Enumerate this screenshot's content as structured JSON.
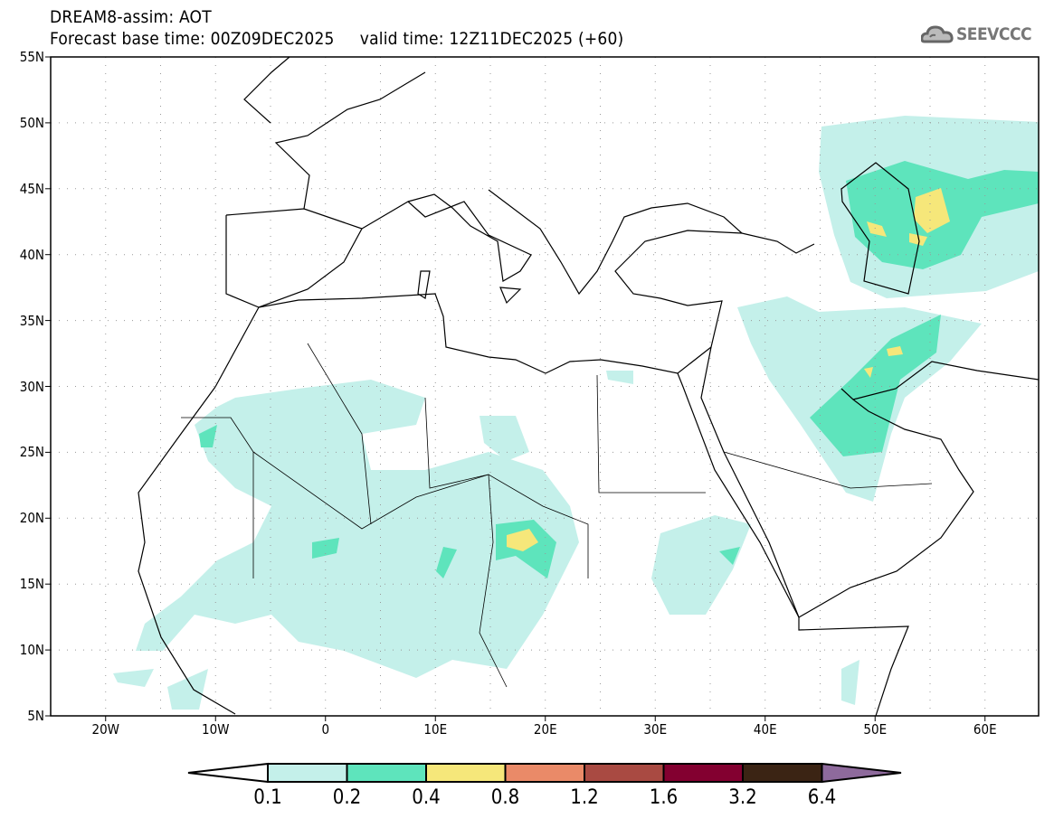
{
  "header": {
    "title": "DREAM8-assim: AOT",
    "base_time_label": "Forecast base time: 00Z09DEC2025",
    "valid_time_label": "valid time: 12Z11DEC2025 (+60)"
  },
  "logo": {
    "text": "SEEVCCC",
    "icon": "cloud-icon"
  },
  "map": {
    "lat_labels": [
      "55N",
      "50N",
      "45N",
      "40N",
      "35N",
      "30N",
      "25N",
      "20N",
      "15N",
      "10N",
      "5N"
    ],
    "lon_labels": [
      "20W",
      "10W",
      "0",
      "10E",
      "20E",
      "30E",
      "40E",
      "50E",
      "60E"
    ],
    "extent": {
      "lon": [
        -25,
        65
      ],
      "lat": [
        5,
        55
      ]
    },
    "gridlines": "dotted every 5 degrees"
  },
  "colorbar": {
    "levels": [
      "0.1",
      "0.2",
      "0.4",
      "0.8",
      "1.2",
      "1.6",
      "3.2",
      "6.4"
    ],
    "colors": [
      "#ffffff",
      "#c4f0ea",
      "#5ee4bc",
      "#f6e77a",
      "#ea8a68",
      "#a94a42",
      "#830030",
      "#3b2414",
      "#8e6a9c"
    ]
  }
}
